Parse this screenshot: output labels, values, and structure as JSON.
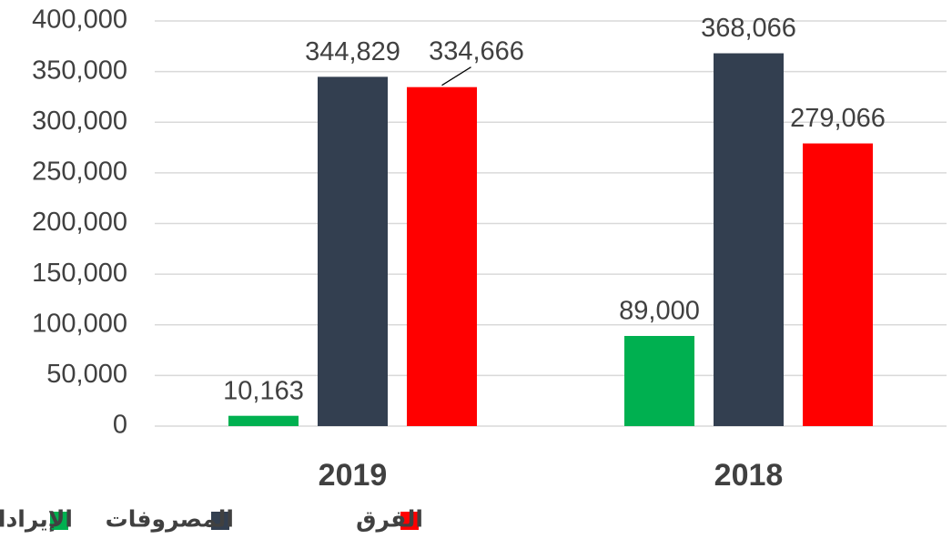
{
  "chart_data": {
    "type": "bar",
    "categories": [
      "2019",
      "2018"
    ],
    "series": [
      {
        "name": "الإيرادات",
        "color": "#00b050",
        "values": [
          10163,
          89000
        ],
        "value_labels": [
          "10,163",
          "89,000"
        ]
      },
      {
        "name": "المصروفات",
        "color": "#333f50",
        "values": [
          344829,
          368066
        ],
        "value_labels": [
          "344,829",
          "368,066"
        ]
      },
      {
        "name": "الفرق",
        "color": "#ff0000",
        "values": [
          334666,
          279066
        ],
        "value_labels": [
          "334,666",
          "279,066"
        ]
      }
    ],
    "ylim": [
      0,
      400000
    ],
    "yticks": [
      0,
      {
        "value": 50000,
        "label": "50,000"
      },
      {
        "value": 100000,
        "label": "100,000"
      },
      {
        "value": 150000,
        "label": "150,000"
      },
      {
        "value": 200000,
        "label": "200,000"
      },
      {
        "value": 250000,
        "label": "250,000"
      },
      {
        "value": 300000,
        "label": "300,000"
      },
      {
        "value": 350000,
        "label": "350,000"
      },
      {
        "value": 400000,
        "label": "400,000"
      }
    ],
    "grid": true,
    "legend": "bottom"
  }
}
